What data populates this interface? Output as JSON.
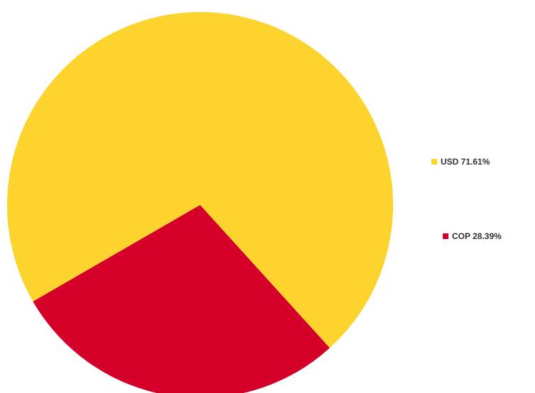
{
  "chart_data": {
    "type": "pie",
    "title": "",
    "legend_position": "right",
    "start_angle_deg": 150,
    "direction": "clockwise",
    "slices": [
      {
        "label": "USD",
        "value": 71.61,
        "display": "USD 71.61%",
        "color": "#FDD32E"
      },
      {
        "label": "COP",
        "value": 28.39,
        "display": "COP 28.39%",
        "color": "#D4002A"
      }
    ]
  }
}
